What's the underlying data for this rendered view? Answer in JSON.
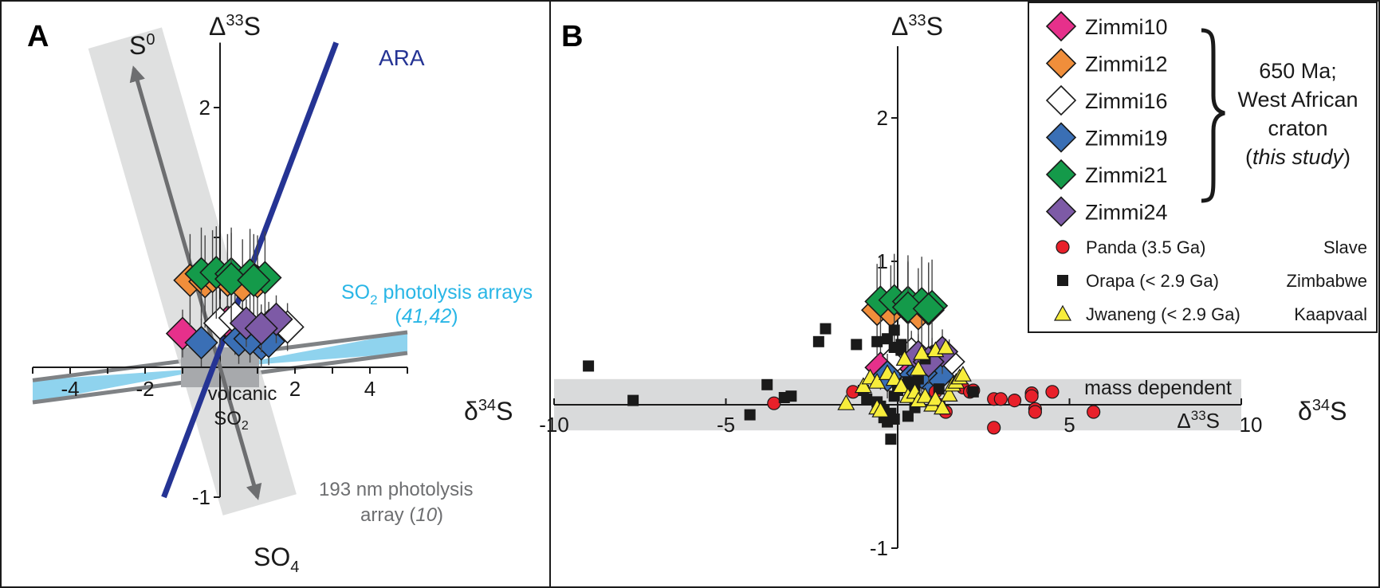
{
  "chart_data": [
    {
      "panel": "A",
      "type": "scatter",
      "xlabel": "δ34S",
      "ylabel": "Δ33S",
      "xlim": [
        -5,
        5
      ],
      "ylim": [
        -1,
        2.5
      ],
      "xticks": [
        -4,
        -2,
        2,
        4
      ],
      "yticks": [
        -1,
        2
      ],
      "grid": false,
      "arrays": [
        {
          "name": "S0",
          "label": "S0",
          "points": [
            [
              -2.3,
              2.3
            ],
            [
              1,
              -1
            ]
          ],
          "color": "#6d6e70"
        },
        {
          "name": "SO4",
          "label": "SO4"
        },
        {
          "name": "ARA",
          "label": "ARA",
          "points": [
            [
              -1.5,
              -1.0
            ],
            [
              3.1,
              2.5
            ]
          ],
          "color": "#253494"
        },
        {
          "name": "SO2 photolysis arrays",
          "label": "SO2 photolysis arrays",
          "citation": "41,42",
          "color": "#29b6e6",
          "upper_array": [
            [
              -5,
              -0.1
            ],
            [
              5,
              0.27
            ]
          ],
          "lower_array": [
            [
              -5,
              -0.27
            ],
            [
              5,
              0.11
            ]
          ]
        },
        {
          "name": "193 nm photolysis array",
          "label_line1": "193 nm photolysis",
          "label_line2_prefix": "array (",
          "citation": "10",
          "label_line2_suffix": ")",
          "color": "#6d6e70"
        }
      ],
      "box_label_line1": "volcanic",
      "box_label_line2": "SO2",
      "volcanic_SO2_box": {
        "x": [
          -1,
          1
        ],
        "y": [
          -0.08,
          0.08
        ]
      },
      "series": [
        {
          "name": "Zimmi10",
          "color": "#e6308b",
          "points": [
            [
              -1.0,
              0.26
            ],
            [
              0.4,
              0.28
            ],
            [
              0.2,
              0.35
            ]
          ]
        },
        {
          "name": "Zimmi12",
          "color": "#f08e3b",
          "points": [
            [
              -0.8,
              0.67
            ],
            [
              -0.4,
              0.66
            ],
            [
              0.2,
              0.67
            ],
            [
              0.6,
              0.63
            ],
            [
              1.0,
              0.66
            ],
            [
              -0.2,
              0.7
            ]
          ]
        },
        {
          "name": "Zimmi16",
          "color": "#ffffff",
          "points": [
            [
              0.0,
              0.34
            ],
            [
              0.6,
              0.33
            ],
            [
              1.3,
              0.32
            ],
            [
              1.8,
              0.31
            ],
            [
              0.4,
              0.38
            ]
          ]
        },
        {
          "name": "Zimmi19",
          "color": "#3a6fb5",
          "points": [
            [
              -0.5,
              0.19
            ],
            [
              0.5,
              0.21
            ],
            [
              1.1,
              0.18
            ],
            [
              1.3,
              0.2
            ],
            [
              0.8,
              0.22
            ]
          ]
        },
        {
          "name": "Zimmi21",
          "color": "#149a4a",
          "points": [
            [
              -0.5,
              0.72
            ],
            [
              -0.1,
              0.73
            ],
            [
              0.3,
              0.72
            ],
            [
              0.8,
              0.71
            ],
            [
              1.2,
              0.69
            ],
            [
              0.3,
              0.68
            ],
            [
              0.9,
              0.67
            ]
          ]
        },
        {
          "name": "Zimmi24",
          "color": "#7d5aa6",
          "points": [
            [
              0.7,
              0.34
            ],
            [
              1.5,
              0.37
            ],
            [
              1.1,
              0.3
            ]
          ]
        }
      ]
    },
    {
      "panel": "B",
      "type": "scatter",
      "xlabel": "δ34S",
      "ylabel": "Δ33S",
      "xlim": [
        -10,
        10
      ],
      "ylim": [
        -1,
        2.5
      ],
      "xticks": [
        -10,
        -5,
        5,
        10
      ],
      "yticks": [
        -1,
        1,
        2
      ],
      "grid": false,
      "band": {
        "label": "mass dependent",
        "label2": "Δ33S",
        "y": [
          -0.09,
          0.09
        ],
        "x": [
          -10,
          10
        ]
      },
      "series": [
        {
          "name": "Zimmi10",
          "color": "#e6308b",
          "points": [
            [
              -0.5,
              0.26
            ],
            [
              0.5,
              0.26
            ],
            [
              0.3,
              0.3
            ]
          ]
        },
        {
          "name": "Zimmi12",
          "color": "#f08e3b",
          "points": [
            [
              -0.6,
              0.66
            ],
            [
              -0.2,
              0.65
            ],
            [
              0.3,
              0.67
            ],
            [
              0.6,
              0.63
            ],
            [
              0.9,
              0.66
            ]
          ]
        },
        {
          "name": "Zimmi16",
          "color": "#ffffff",
          "points": [
            [
              0.0,
              0.34
            ],
            [
              0.6,
              0.33
            ],
            [
              1.0,
              0.31
            ],
            [
              1.5,
              0.3
            ],
            [
              0.4,
              0.36
            ]
          ]
        },
        {
          "name": "Zimmi19",
          "color": "#3a6fb5",
          "points": [
            [
              -0.3,
              0.2
            ],
            [
              0.5,
              0.21
            ],
            [
              0.9,
              0.18
            ],
            [
              1.2,
              0.2
            ],
            [
              0.7,
              0.22
            ]
          ]
        },
        {
          "name": "Zimmi21",
          "color": "#149a4a",
          "points": [
            [
              -0.5,
              0.72
            ],
            [
              -0.1,
              0.73
            ],
            [
              0.3,
              0.72
            ],
            [
              0.7,
              0.71
            ],
            [
              1.0,
              0.69
            ],
            [
              0.3,
              0.68
            ],
            [
              0.9,
              0.67
            ]
          ]
        },
        {
          "name": "Zimmi24",
          "color": "#7d5aa6",
          "points": [
            [
              0.6,
              0.34
            ],
            [
              1.3,
              0.37
            ],
            [
              0.9,
              0.3
            ]
          ]
        },
        {
          "name": "Panda (3.5 Ga)",
          "region": "Slave",
          "color": "#e8202a",
          "points": [
            [
              -3.6,
              0.01
            ],
            [
              -1.3,
              0.09
            ],
            [
              1.1,
              0.09
            ],
            [
              1.9,
              0.12
            ],
            [
              2.1,
              0.09
            ],
            [
              2.2,
              0.1
            ],
            [
              2.8,
              0.04
            ],
            [
              3.0,
              0.04
            ],
            [
              3.4,
              0.03
            ],
            [
              3.9,
              0.08
            ],
            [
              3.9,
              0.06
            ],
            [
              4.5,
              0.09
            ],
            [
              5.7,
              -0.05
            ],
            [
              4.0,
              -0.03
            ],
            [
              4.0,
              -0.05
            ],
            [
              1.2,
              0.0
            ],
            [
              1.4,
              -0.05
            ],
            [
              2.8,
              -0.16
            ]
          ]
        },
        {
          "name": "Orapa (< 2.9 Ga)",
          "region": "Zimbabwe",
          "color": "#1a1a1a",
          "points": [
            [
              -9.0,
              0.27
            ],
            [
              -7.7,
              0.03
            ],
            [
              -3.8,
              0.14
            ],
            [
              -3.3,
              0.05
            ],
            [
              -3.1,
              0.06
            ],
            [
              -4.3,
              -0.07
            ],
            [
              -2.3,
              0.44
            ],
            [
              -2.1,
              0.53
            ],
            [
              -1.2,
              0.42
            ],
            [
              -1.0,
              0.1
            ],
            [
              -0.9,
              0.04
            ],
            [
              -0.6,
              0.02
            ],
            [
              -0.5,
              -0.01
            ],
            [
              -0.4,
              -0.04
            ],
            [
              -0.4,
              -0.09
            ],
            [
              -0.2,
              -0.06
            ],
            [
              -0.3,
              -0.12
            ],
            [
              -0.1,
              -0.1
            ],
            [
              0.0,
              0.1
            ],
            [
              -0.1,
              0.06
            ],
            [
              0.1,
              0.42
            ],
            [
              -0.2,
              -0.24
            ],
            [
              0.3,
              -0.08
            ],
            [
              0.5,
              -0.02
            ],
            [
              -0.1,
              0.4
            ],
            [
              0.3,
              0.16
            ],
            [
              0.4,
              0.12
            ],
            [
              0.6,
              0.18
            ],
            [
              0.8,
              0.32
            ],
            [
              0.1,
              0.38
            ],
            [
              0.5,
              0.13
            ],
            [
              1.2,
              0.11
            ],
            [
              2.2,
              0.09
            ],
            [
              -0.6,
              0.44
            ],
            [
              -0.3,
              0.46
            ],
            [
              -0.1,
              0.52
            ]
          ]
        },
        {
          "name": "Jwaneng (< 2.9 Ga)",
          "region": "Kaapvaal",
          "color": "#f7ed3b",
          "points": [
            [
              -1.5,
              0.01
            ],
            [
              -1.0,
              0.13
            ],
            [
              -0.8,
              0.19
            ],
            [
              -0.6,
              0.16
            ],
            [
              -0.6,
              -0.02
            ],
            [
              -0.5,
              -0.04
            ],
            [
              -0.3,
              0.22
            ],
            [
              -0.1,
              0.18
            ],
            [
              0.1,
              0.13
            ],
            [
              0.3,
              0.06
            ],
            [
              0.5,
              0.09
            ],
            [
              0.6,
              0.03
            ],
            [
              0.8,
              0.06
            ],
            [
              1.0,
              0.0
            ],
            [
              1.1,
              0.04
            ],
            [
              1.3,
              -0.02
            ],
            [
              1.5,
              0.07
            ],
            [
              1.6,
              0.14
            ],
            [
              1.7,
              0.16
            ],
            [
              1.8,
              0.19
            ],
            [
              1.9,
              0.21
            ],
            [
              0.2,
              0.32
            ],
            [
              0.7,
              0.36
            ],
            [
              1.1,
              0.38
            ],
            [
              1.4,
              0.4
            ],
            [
              0.6,
              0.25
            ]
          ]
        }
      ]
    }
  ],
  "panelA": {
    "letter": "A"
  },
  "panelB": {
    "letter": "B"
  },
  "legend": {
    "bracket_line1": "650 Ma;",
    "bracket_line2": "West African",
    "bracket_line3": "craton",
    "bracket_line4_pre": "(",
    "bracket_line4_italic": "this study",
    "bracket_line4_post": ")"
  }
}
